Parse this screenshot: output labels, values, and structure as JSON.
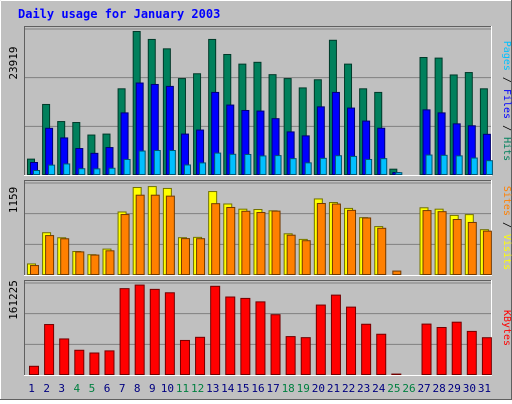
{
  "chart_data": {
    "type": "bar",
    "title": "Daily usage for January 2003",
    "colors": {
      "background": "#c0c0c0",
      "title": "#0000ff",
      "hits": "#00805c",
      "files": "#0000ff",
      "pages": "#00c0ff",
      "visits": "#ffff00",
      "sites": "#ff8000",
      "kbytes": "#ff0000",
      "weekend_day": "#008040",
      "weekday_day": "#000080"
    },
    "x": {
      "days": [
        "1",
        "2",
        "3",
        "4",
        "5",
        "6",
        "7",
        "8",
        "9",
        "10",
        "11",
        "12",
        "13",
        "14",
        "15",
        "16",
        "17",
        "18",
        "19",
        "20",
        "21",
        "22",
        "23",
        "24",
        "25",
        "26",
        "27",
        "28",
        "29",
        "30",
        "31"
      ],
      "weekend": [
        4,
        5,
        11,
        12,
        18,
        19,
        25,
        26
      ]
    },
    "panels": [
      {
        "id": "hits-files-pages",
        "ymax_label": "23919",
        "ylim": [
          0,
          23919
        ],
        "legend": [
          {
            "text": "Pages",
            "color": "#00c0ff"
          },
          {
            "text": " / ",
            "color": "#000000"
          },
          {
            "text": "Files",
            "color": "#0000ff"
          },
          {
            "text": " / ",
            "color": "#000000"
          },
          {
            "text": "Hits",
            "color": "#00805c"
          }
        ],
        "series": [
          {
            "name": "Hits",
            "values": [
              2720,
              11800,
              8960,
              8800,
              6720,
              6880,
              14400,
              23919,
              22600,
              21040,
              16100,
              16900,
              22600,
              20100,
              18500,
              18800,
              16750,
              16100,
              14550,
              15900,
              22460,
              18500,
              14400,
              13800,
              1050,
              null,
              19600,
              19500,
              16700,
              17100,
              14400
            ]
          },
          {
            "name": "Files",
            "values": [
              2160,
              7840,
              6240,
              4480,
              3680,
              4640,
              10400,
              15360,
              15120,
              14800,
              6880,
              7550,
              13800,
              11700,
              10800,
              10700,
              9440,
              7240,
              6580,
              11400,
              13800,
              11200,
              9040,
              7850,
              490,
              null,
              10900,
              10400,
              8580,
              8260,
              6840
            ]
          },
          {
            "name": "Pages",
            "values": [
              830,
              1720,
              1920,
              1130,
              1100,
              1200,
              2660,
              4060,
              4150,
              4150,
              1750,
              2090,
              3720,
              3520,
              3490,
              3250,
              3300,
              2800,
              2100,
              2850,
              3280,
              3170,
              2660,
              2800,
              470,
              null,
              3400,
              3350,
              3260,
              2900,
              2460
            ]
          }
        ]
      },
      {
        "id": "visits-sites",
        "ymax_label": "1159",
        "ylim": [
          0,
          1159
        ],
        "legend": [
          {
            "text": "Sites",
            "color": "#ff8000"
          },
          {
            "text": " / ",
            "color": "#000000"
          },
          {
            "text": "Visits",
            "color": "#ffff00"
          }
        ],
        "series": [
          {
            "name": "Visits",
            "values": [
              149,
              551,
              486,
              309,
              268,
              340,
              818,
              1133,
              1145,
              1121,
              487,
              491,
              1081,
              921,
              854,
              850,
              833,
              537,
              465,
              986,
              940,
              864,
              745,
              630,
              null,
              null,
              872,
              854,
              774,
              784,
              590
            ]
          },
          {
            "name": "Sites",
            "values": [
              128,
              514,
              473,
              304,
              263,
              318,
              785,
              1034,
              1034,
              1022,
              475,
              474,
              925,
              876,
              827,
              811,
              829,
              519,
              448,
              927,
              920,
              839,
              741,
              608,
              57,
              null,
              836,
              822,
              721,
              683,
              571
            ]
          }
        ]
      },
      {
        "id": "kbytes",
        "ymax_label": "161225",
        "ylim": [
          0,
          161225
        ],
        "legend": [
          {
            "text": "KBytes",
            "color": "#ff0000"
          }
        ],
        "series": [
          {
            "name": "KBytes",
            "values": [
              16500,
              91300,
              65500,
              45200,
              40300,
              44100,
              155600,
              162000,
              154300,
              148200,
              62800,
              68400,
              159800,
              140600,
              138100,
              131900,
              108900,
              69700,
              67800,
              126200,
              144000,
              122500,
              91800,
              73900,
              2560,
              null,
              92100,
              86000,
              95500,
              79000,
              67700
            ]
          }
        ]
      }
    ]
  }
}
